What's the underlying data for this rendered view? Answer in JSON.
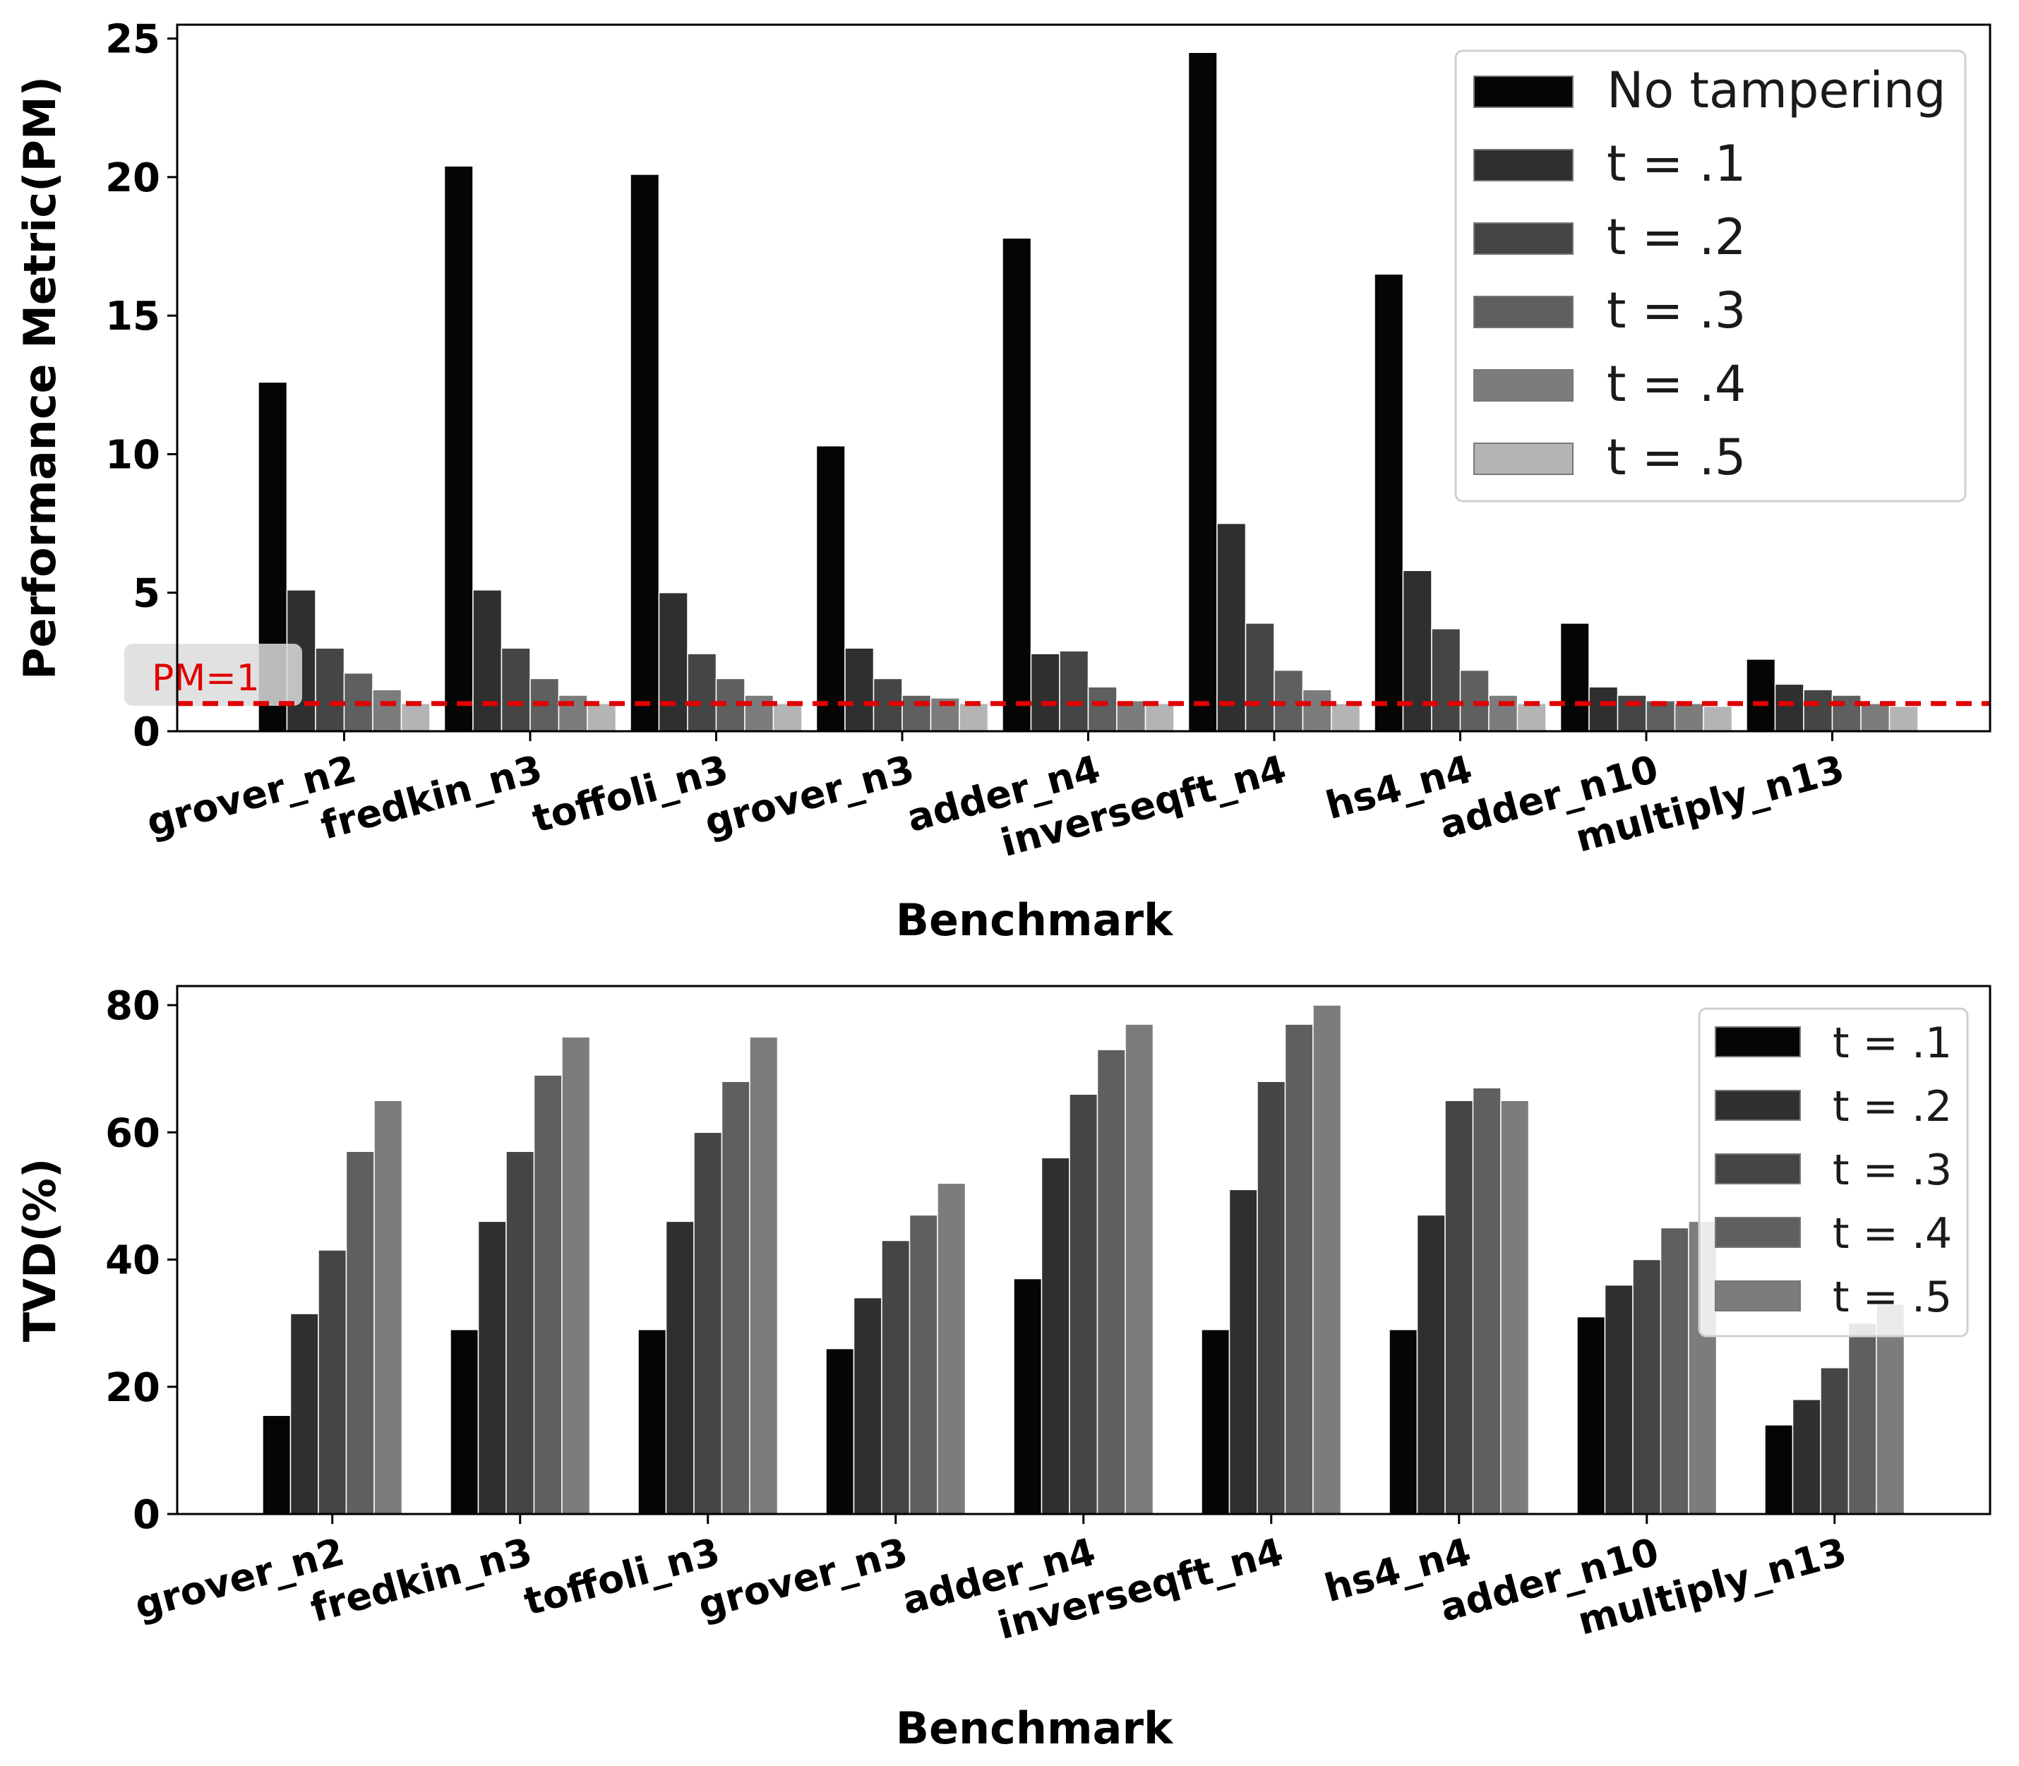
{
  "chart_data": [
    {
      "type": "bar",
      "categories": [
        "grover_n2",
        "fredkin_n3",
        "toffoli_n3",
        "grover_n3",
        "adder_n4",
        "inverseqft_n4",
        "hs4_n4",
        "adder_n10",
        "multiply_n13"
      ],
      "series": [
        {
          "name": "No tampering",
          "color": "#050505",
          "values": [
            12.6,
            20.4,
            20.1,
            10.3,
            17.8,
            24.5,
            16.5,
            3.9,
            2.6
          ]
        },
        {
          "name": "t = .1",
          "color": "#2f2f2f",
          "values": [
            5.1,
            5.1,
            5.0,
            3.0,
            2.8,
            7.5,
            5.8,
            1.6,
            1.7
          ]
        },
        {
          "name": "t = .2",
          "color": "#454545",
          "values": [
            3.0,
            3.0,
            2.8,
            1.9,
            2.9,
            3.9,
            3.7,
            1.3,
            1.5
          ]
        },
        {
          "name": "t = .3",
          "color": "#5f5f5f",
          "values": [
            2.1,
            1.9,
            1.9,
            1.3,
            1.6,
            2.2,
            2.2,
            1.1,
            1.3
          ]
        },
        {
          "name": "t = .4",
          "color": "#7c7c7c",
          "values": [
            1.5,
            1.3,
            1.3,
            1.2,
            1.1,
            1.5,
            1.3,
            1.0,
            1.0
          ]
        },
        {
          "name": "t = .5",
          "color": "#b4b4b4",
          "values": [
            1.0,
            1.0,
            1.0,
            1.0,
            1.0,
            1.0,
            1.0,
            0.9,
            0.9
          ]
        }
      ],
      "xlabel": "Benchmark",
      "ylabel": "Performance Metric(PM)",
      "ylim": [
        0,
        25.5
      ],
      "yticks": [
        0,
        5,
        10,
        15,
        20,
        25
      ],
      "reference_line": {
        "value": 1,
        "label": "PM=1",
        "color": "#e00000",
        "style": "dashed"
      },
      "legend_position": "upper right",
      "grid": false
    },
    {
      "type": "bar",
      "categories": [
        "grover_n2",
        "fredkin_n3",
        "toffoli_n3",
        "grover_n3",
        "adder_n4",
        "inverseqft_n4",
        "hs4_n4",
        "adder_n10",
        "multiply_n13"
      ],
      "series": [
        {
          "name": "t = .1",
          "color": "#050505",
          "values": [
            15.5,
            29,
            29,
            26,
            37,
            29,
            29,
            31,
            14
          ]
        },
        {
          "name": "t = .2",
          "color": "#2f2f2f",
          "values": [
            31.5,
            46,
            46,
            34,
            56,
            51,
            47,
            36,
            18
          ]
        },
        {
          "name": "t = .3",
          "color": "#454545",
          "values": [
            41.5,
            57,
            60,
            43,
            66,
            68,
            65,
            40,
            23
          ]
        },
        {
          "name": "t = .4",
          "color": "#5f5f5f",
          "values": [
            57,
            69,
            68,
            47,
            73,
            77,
            67,
            45,
            30
          ]
        },
        {
          "name": "t = .5",
          "color": "#7c7c7c",
          "values": [
            65,
            75,
            75,
            52,
            77,
            80,
            65,
            46,
            33
          ]
        }
      ],
      "xlabel": "Benchmark",
      "ylabel": "TVD(%)",
      "ylim": [
        0,
        83
      ],
      "yticks": [
        0,
        20,
        40,
        60,
        80
      ],
      "legend_position": "right",
      "grid": false
    }
  ]
}
